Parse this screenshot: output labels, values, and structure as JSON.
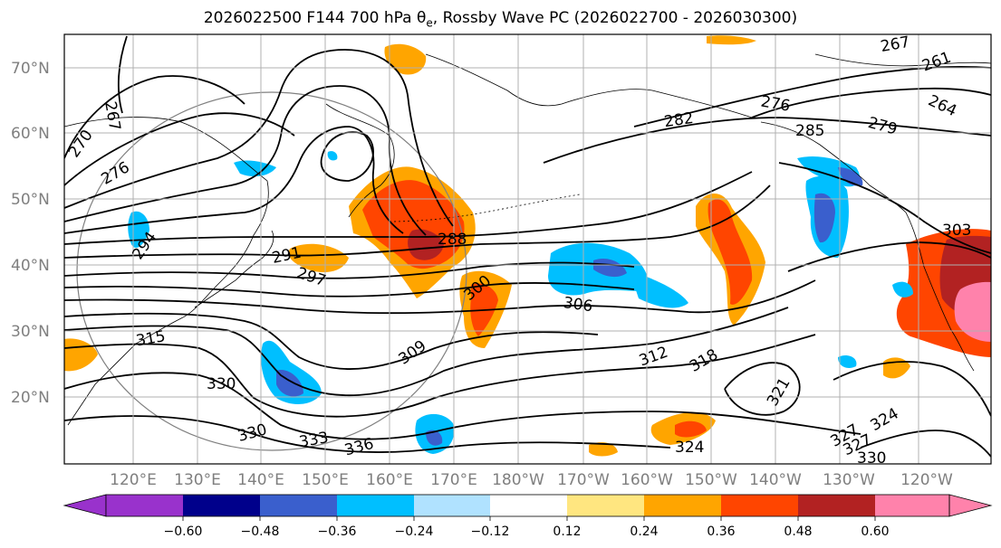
{
  "title": {
    "prefix": "2026022500 F144 700 hPa θ",
    "subscript": "e",
    "suffix": ", Rossby Wave PC (2026022700 - 2026030300)"
  },
  "lat_labels": [
    "70°N",
    "60°N",
    "50°N",
    "40°N",
    "30°N",
    "20°N"
  ],
  "lon_labels": [
    "120°E",
    "130°E",
    "140°E",
    "150°E",
    "160°E",
    "170°E",
    "180°W",
    "170°W",
    "160°W",
    "150°W",
    "140°W",
    "130°W",
    "120°W"
  ],
  "contour_labels": [
    "267",
    "270",
    "276",
    "291",
    "294",
    "297",
    "288",
    "285",
    "282",
    "276",
    "279",
    "264",
    "261",
    "267",
    "300",
    "306",
    "303",
    "309",
    "312",
    "315",
    "318",
    "321",
    "324",
    "327",
    "330",
    "333",
    "336",
    "330",
    "327",
    "324",
    "330"
  ],
  "colorbar": {
    "ticks": [
      "−0.60",
      "−0.48",
      "−0.36",
      "−0.24",
      "−0.12",
      "0.12",
      "0.24",
      "0.36",
      "0.48",
      "0.60"
    ],
    "colors": [
      "#9932cc",
      "#00008b",
      "#3a5fcd",
      "#00bfff",
      "#b0e2ff",
      "#ffffff",
      "#ffe680",
      "#ffa500",
      "#ff4500",
      "#b22222",
      "#ff82ab"
    ]
  },
  "colors": {
    "positive_light": "#ffa500",
    "positive_mid": "#ff4500",
    "positive_dark": "#b22222",
    "positive_max": "#ff82ab",
    "negative_light": "#00bfff",
    "negative_mid": "#3a5fcd",
    "gridline": "#b0b0b0",
    "contour": "#000000"
  }
}
